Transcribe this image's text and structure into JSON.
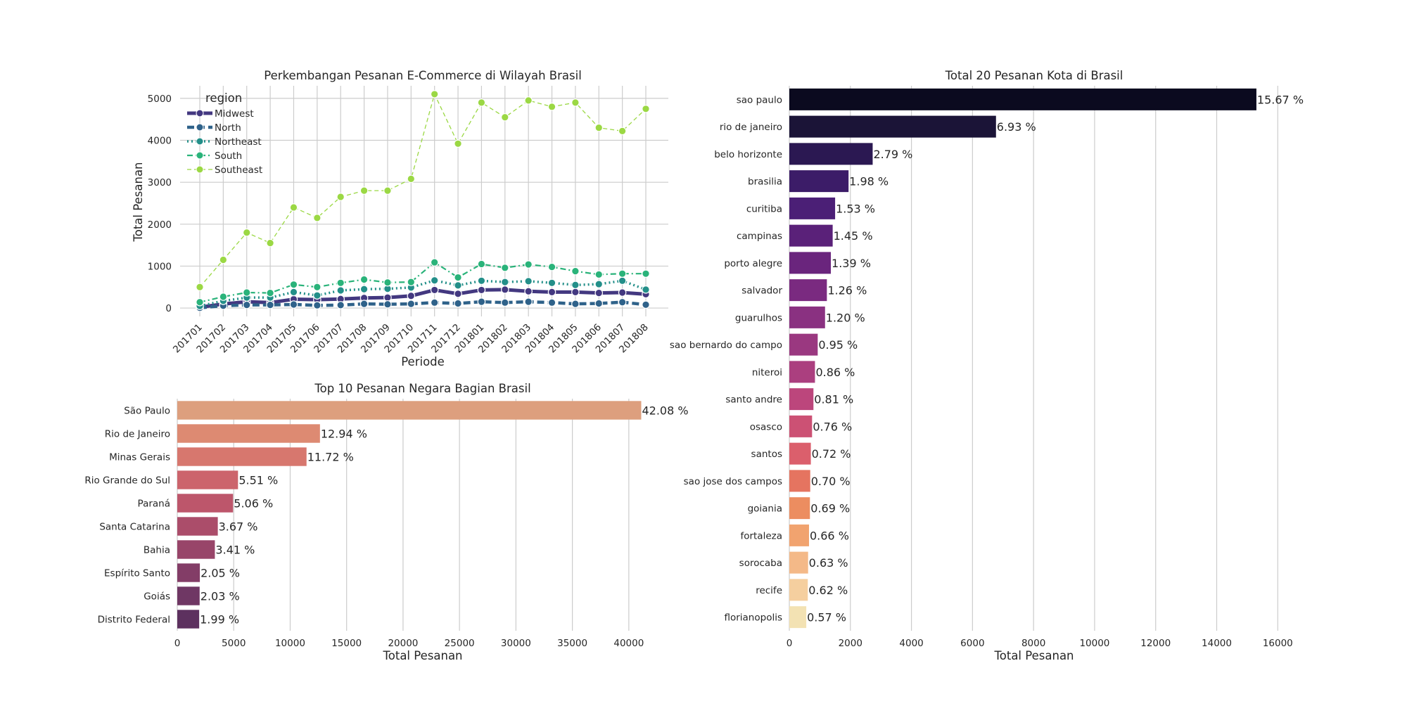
{
  "chart_data": [
    {
      "id": "line",
      "type": "line",
      "title": "Perkembangan Pesanan E-Commerce di Wilayah Brasil",
      "xlabel": "Periode",
      "ylabel": "Total Pesanan",
      "ylim": [
        -200,
        5300
      ],
      "yticks": [
        0,
        1000,
        2000,
        3000,
        4000,
        5000
      ],
      "grid": true,
      "legend_title": "region",
      "legend_position": "top-left",
      "categories": [
        "201701",
        "201702",
        "201703",
        "201704",
        "201705",
        "201706",
        "201707",
        "201708",
        "201709",
        "201710",
        "201711",
        "201712",
        "201801",
        "201802",
        "201803",
        "201804",
        "201805",
        "201806",
        "201807",
        "201808"
      ],
      "series": [
        {
          "name": "Midwest",
          "color": "#433880",
          "dash": "solid",
          "width": 5,
          "values": [
            20,
            95,
            150,
            130,
            210,
            200,
            215,
            240,
            250,
            290,
            430,
            340,
            430,
            440,
            400,
            380,
            380,
            360,
            370,
            330
          ]
        },
        {
          "name": "North",
          "color": "#2f628a",
          "dash": "10 5",
          "width": 4.5,
          "values": [
            5,
            55,
            75,
            75,
            85,
            65,
            70,
            100,
            90,
            100,
            130,
            110,
            150,
            130,
            150,
            130,
            100,
            110,
            140,
            80
          ]
        },
        {
          "name": "Northeast",
          "color": "#238f89",
          "dash": "2 4",
          "width": 3.5,
          "values": [
            50,
            170,
            250,
            250,
            380,
            300,
            420,
            450,
            460,
            490,
            660,
            540,
            650,
            620,
            640,
            600,
            550,
            570,
            650,
            440
          ]
        },
        {
          "name": "South",
          "color": "#2ab37a",
          "dash": "8 4 2 4",
          "width": 2.2,
          "values": [
            140,
            270,
            370,
            360,
            560,
            500,
            600,
            680,
            610,
            620,
            1090,
            730,
            1050,
            960,
            1040,
            980,
            880,
            800,
            820,
            820
          ]
        },
        {
          "name": "Southeast",
          "color": "#9bd844",
          "dash": "6 4",
          "width": 1.3,
          "values": [
            500,
            1150,
            1800,
            1550,
            2400,
            2150,
            2650,
            2800,
            2800,
            3080,
            5100,
            3920,
            4900,
            4550,
            4950,
            4800,
            4900,
            4300,
            4220,
            4750
          ]
        }
      ]
    },
    {
      "id": "states",
      "type": "bar",
      "orientation": "horizontal",
      "title": "Top 10 Pesanan Negara Bagian Brasil",
      "xlabel": "Total Pesanan",
      "xlim": [
        0,
        43500
      ],
      "xticks": [
        0,
        5000,
        10000,
        15000,
        20000,
        25000,
        30000,
        35000,
        40000
      ],
      "grid": true,
      "categories": [
        "São Paulo",
        "Rio de Janeiro",
        "Minas Gerais",
        "Rio Grande do Sul",
        "Paraná",
        "Santa Catarina",
        "Bahia",
        "Espírito Santo",
        "Goiás",
        "Distrito Federal"
      ],
      "values": [
        41100,
        12640,
        11450,
        5380,
        4940,
        3590,
        3330,
        2000,
        1980,
        1940
      ],
      "labels": [
        "42.08 %",
        "12.94 %",
        "11.72 %",
        "5.51 %",
        "5.06 %",
        "3.67 %",
        "3.41 %",
        "2.05 %",
        "2.03 %",
        "1.99 %"
      ],
      "colors": [
        "#dd9f7e",
        "#dd8a72",
        "#d7776e",
        "#cc646c",
        "#bd566b",
        "#ab4d6a",
        "#984569",
        "#833d67",
        "#6f3764",
        "#5d315f"
      ]
    },
    {
      "id": "cities",
      "type": "bar",
      "orientation": "horizontal",
      "title": "Total 20 Pesanan Kota di Brasil",
      "xlabel": "Total Pesanan",
      "xlim": [
        0,
        16500
      ],
      "xticks": [
        0,
        2000,
        4000,
        6000,
        8000,
        10000,
        12000,
        14000,
        16000
      ],
      "grid": true,
      "categories": [
        "sao paulo",
        "rio de janeiro",
        "belo horizonte",
        "brasilia",
        "curitiba",
        "campinas",
        "porto alegre",
        "salvador",
        "guarulhos",
        "sao bernardo do campo",
        "niteroi",
        "santo andre",
        "osasco",
        "santos",
        "sao jose dos campos",
        "goiania",
        "fortaleza",
        "sorocaba",
        "recife",
        "florianopolis"
      ],
      "values": [
        15300,
        6770,
        2730,
        1940,
        1500,
        1420,
        1360,
        1230,
        1170,
        930,
        840,
        790,
        745,
        705,
        685,
        675,
        645,
        615,
        605,
        555
      ],
      "labels": [
        "15.67 %",
        "6.93 %",
        "2.79 %",
        "1.98 %",
        "1.53 %",
        "1.45 %",
        "1.39 %",
        "1.26 %",
        "1.20 %",
        "0.95 %",
        "0.86 %",
        "0.81 %",
        "0.76 %",
        "0.72 %",
        "0.70 %",
        "0.69 %",
        "0.66 %",
        "0.63 %",
        "0.62 %",
        "0.57 %"
      ],
      "colors": [
        "#0b0a1f",
        "#1b1437",
        "#2b1852",
        "#3c1c68",
        "#4b1f76",
        "#5a2179",
        "#6a257d",
        "#7a2a80",
        "#8a3181",
        "#9a3880",
        "#ab3f7f",
        "#bc467c",
        "#cc5174",
        "#db5f6c",
        "#e57460",
        "#ec8d60",
        "#f1a36f",
        "#f4b988",
        "#f5cf9f",
        "#f3e2b3"
      ]
    }
  ]
}
